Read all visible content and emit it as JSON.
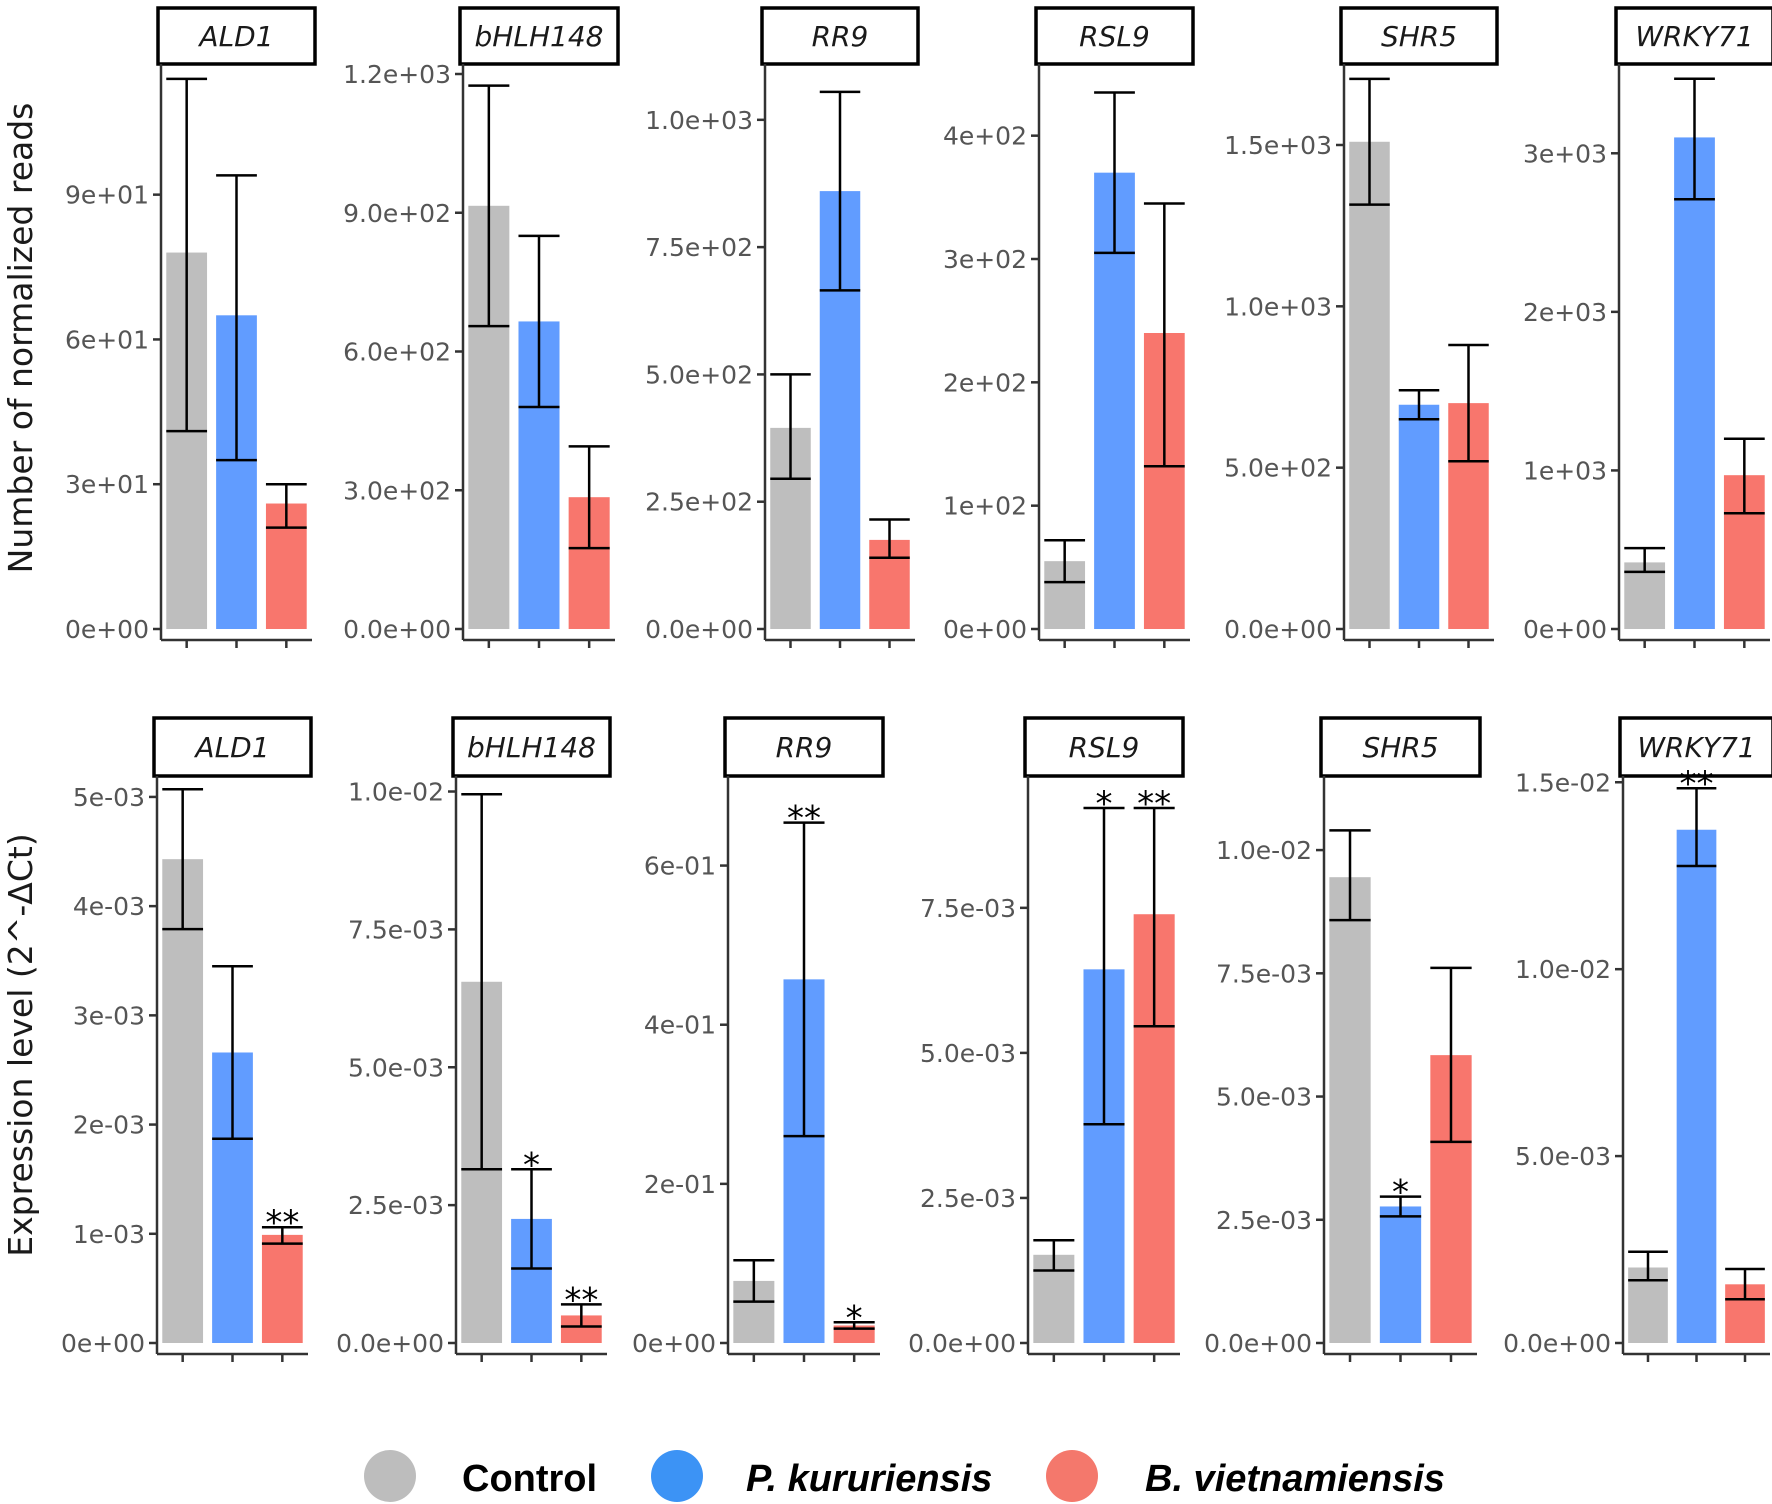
{
  "legend": [
    {
      "label": "Control",
      "color": "#BDBDBD",
      "italic": false
    },
    {
      "label": "P. kururiensis",
      "color": "#3C93F5",
      "italic": true
    },
    {
      "label": "B. vietnamiensis",
      "color": "#F4786C",
      "italic": true
    }
  ],
  "colors": {
    "control_bar": "#BEBEBE",
    "pk_bar": "#619CFF",
    "bv_bar": "#F8766D",
    "axis": "#333333",
    "error_bar": "#000000"
  },
  "chart_data": [
    {
      "type": "bar",
      "ylabel": "Number of normalized reads",
      "categories": [
        "Control",
        "P. kururiensis",
        "B. vietnamiensis"
      ],
      "facets": [
        {
          "title": "ALD1",
          "ylim": [
            0,
            115
          ],
          "ticks": [
            0,
            30,
            60,
            90
          ],
          "tick_labels": [
            "0e+00",
            "3e+01",
            "6e+01",
            "9e+01"
          ],
          "values": [
            78,
            65,
            26
          ],
          "err_low": [
            41,
            35,
            21
          ],
          "err_high": [
            114,
            94,
            30
          ],
          "stars": [
            "",
            "",
            ""
          ]
        },
        {
          "title": "bHLH148",
          "ylim": [
            0,
            1200
          ],
          "ticks": [
            0,
            300,
            600,
            900,
            1200
          ],
          "tick_labels": [
            "0.0e+00",
            "3.0e+02",
            "6.0e+02",
            "9.0e+02",
            "1.2e+03"
          ],
          "values": [
            915,
            665,
            285
          ],
          "err_low": [
            655,
            480,
            175
          ],
          "err_high": [
            1175,
            850,
            395
          ],
          "stars": [
            "",
            "",
            ""
          ]
        },
        {
          "title": "RR9",
          "ylim": [
            0,
            1090
          ],
          "ticks": [
            0,
            250,
            500,
            750,
            1000
          ],
          "tick_labels": [
            "0.0e+00",
            "2.5e+02",
            "5.0e+02",
            "7.5e+02",
            "1.0e+03"
          ],
          "values": [
            395,
            860,
            175
          ],
          "err_low": [
            295,
            665,
            140
          ],
          "err_high": [
            500,
            1055,
            215
          ],
          "stars": [
            "",
            "",
            ""
          ]
        },
        {
          "title": "RSL9",
          "ylim": [
            0,
            450
          ],
          "ticks": [
            0,
            100,
            200,
            300,
            400
          ],
          "tick_labels": [
            "0e+00",
            "1e+02",
            "2e+02",
            "3e+02",
            "4e+02"
          ],
          "values": [
            55,
            370,
            240
          ],
          "err_low": [
            38,
            305,
            132
          ],
          "err_high": [
            72,
            435,
            345
          ],
          "stars": [
            "",
            "",
            ""
          ]
        },
        {
          "title": "SHR5",
          "ylim": [
            0,
            1720
          ],
          "ticks": [
            0,
            500,
            1000,
            1500
          ],
          "tick_labels": [
            "0.0e+00",
            "5.0e+02",
            "1.0e+03",
            "1.5e+03"
          ],
          "values": [
            1510,
            695,
            700
          ],
          "err_low": [
            1315,
            650,
            520
          ],
          "err_high": [
            1705,
            740,
            880
          ],
          "stars": [
            "",
            "",
            ""
          ]
        },
        {
          "title": "WRKY71",
          "ylim": [
            0,
            3500
          ],
          "ticks": [
            0,
            1000,
            2000,
            3000
          ],
          "tick_labels": [
            "0e+00",
            "1e+03",
            "2e+03",
            "3e+03"
          ],
          "values": [
            420,
            3100,
            970
          ],
          "err_low": [
            360,
            2710,
            730
          ],
          "err_high": [
            510,
            3470,
            1200
          ],
          "stars": [
            "",
            "",
            ""
          ]
        }
      ]
    },
    {
      "type": "bar",
      "ylabel": "Expression level (2^-ΔCt)",
      "categories": [
        "Control",
        "P. kururiensis",
        "B. vietnamiensis"
      ],
      "facets": [
        {
          "title": "ALD1",
          "ylim": [
            0,
            0.0051
          ],
          "ticks": [
            0,
            0.001,
            0.002,
            0.003,
            0.004,
            0.005
          ],
          "tick_labels": [
            "0e+00",
            "1e-03",
            "2e-03",
            "3e-03",
            "4e-03",
            "5e-03"
          ],
          "values": [
            0.00443,
            0.00266,
            0.00099
          ],
          "err_low": [
            0.00379,
            0.00187,
            0.00091
          ],
          "err_high": [
            0.00507,
            0.00345,
            0.00106
          ],
          "stars": [
            "",
            "",
            "**"
          ]
        },
        {
          "title": "bHLH148",
          "ylim": [
            0,
            0.0101
          ],
          "ticks": [
            0,
            0.0025,
            0.005,
            0.0075,
            0.01
          ],
          "tick_labels": [
            "0.0e+00",
            "2.5e-03",
            "5.0e-03",
            "7.5e-03",
            "1.0e-02"
          ],
          "values": [
            0.00655,
            0.00225,
            0.0005
          ],
          "err_low": [
            0.00315,
            0.00135,
            0.0003
          ],
          "err_high": [
            0.00995,
            0.00315,
            0.0007
          ],
          "stars": [
            "",
            "*",
            "**"
          ]
        },
        {
          "title": "RR9",
          "ylim": [
            0,
            0.7
          ],
          "ticks": [
            0,
            0.2,
            0.4,
            0.6
          ],
          "tick_labels": [
            "0e+00",
            "2e-01",
            "4e-01",
            "6e-01"
          ],
          "values": [
            0.078,
            0.457,
            0.022
          ],
          "err_low": [
            0.052,
            0.26,
            0.018
          ],
          "err_high": [
            0.104,
            0.654,
            0.026
          ],
          "stars": [
            "",
            "**",
            "*"
          ]
        },
        {
          "title": "RSL9",
          "ylim": [
            0,
            0.0096
          ],
          "ticks": [
            0,
            0.0025,
            0.005,
            0.0075
          ],
          "tick_labels": [
            "0.0e+00",
            "2.5e-03",
            "5.0e-03",
            "7.5e-03"
          ],
          "values": [
            0.00152,
            0.00644,
            0.00739
          ],
          "err_low": [
            0.00125,
            0.00377,
            0.00546
          ],
          "err_high": [
            0.00177,
            0.00922,
            0.00922
          ],
          "stars": [
            "",
            "*",
            "**"
          ]
        },
        {
          "title": "SHR5",
          "ylim": [
            0,
            0.0113
          ],
          "ticks": [
            0,
            0.0025,
            0.005,
            0.0075,
            0.01
          ],
          "tick_labels": [
            "0.0e+00",
            "2.5e-03",
            "5.0e-03",
            "7.5e-03",
            "1.0e-02"
          ],
          "values": [
            0.00945,
            0.00277,
            0.00584
          ],
          "err_low": [
            0.00858,
            0.00257,
            0.00408
          ],
          "err_high": [
            0.0104,
            0.00297,
            0.00761
          ],
          "stars": [
            "",
            "*",
            ""
          ]
        },
        {
          "title": "WRKY71",
          "ylim": [
            0,
            0.0149
          ],
          "ticks": [
            0,
            0.005,
            0.01,
            0.015
          ],
          "tick_labels": [
            "0.0e+00",
            "5.0e-03",
            "1.0e-02",
            "1.5e-02"
          ],
          "values": [
            0.00202,
            0.01373,
            0.00157
          ],
          "err_low": [
            0.00168,
            0.01276,
            0.00117
          ],
          "err_high": [
            0.00244,
            0.01484,
            0.00198
          ],
          "stars": [
            "",
            "**",
            ""
          ]
        }
      ]
    }
  ]
}
